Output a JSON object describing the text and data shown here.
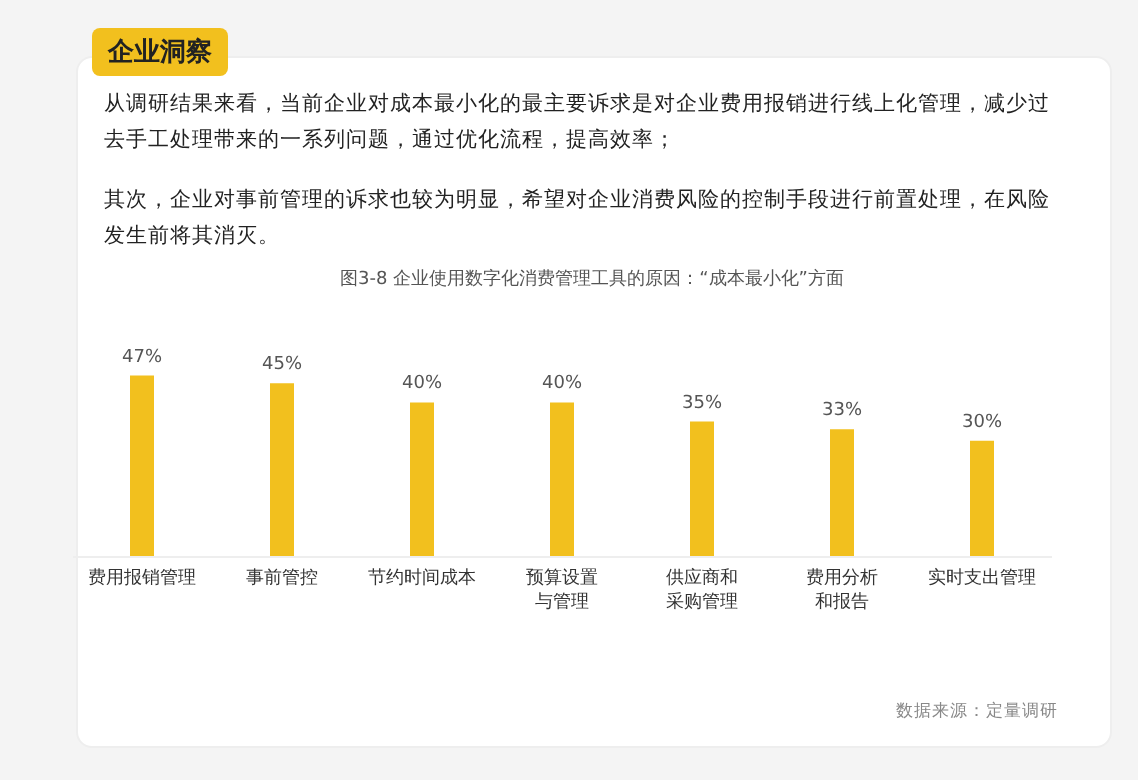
{
  "chart_data": {
    "type": "bar",
    "title": "图3-8 企业使用数字化消费管理工具的原因：“成本最小化”方面",
    "categories": [
      "费用报销管理",
      "事前管控",
      "节约时间成本",
      "预算设置与管理",
      "供应商和采购管理",
      "费用分析和报告",
      "实时支出管理"
    ],
    "values": [
      47,
      45,
      40,
      40,
      35,
      33,
      30
    ],
    "value_labels": [
      "47%",
      "45%",
      "40%",
      "40%",
      "35%",
      "33%",
      "30%"
    ],
    "color": "#f2c01e",
    "tick_labels": "x",
    "annotations": [
      "企业洞察",
      "从调研结果来看，当前企业对成本最小化的最主要诉求是对企业费用报销进行线上化管理，减少过去手工处理带来的一系列问题，通过优化流程，提高效率；",
      "其次，企业对事前管理的诉求也较为明显，希望对企业消费风险的控制手段进行前置处理，在风险发生前将其消灭。",
      "数据来源：定量调研"
    ]
  }
}
